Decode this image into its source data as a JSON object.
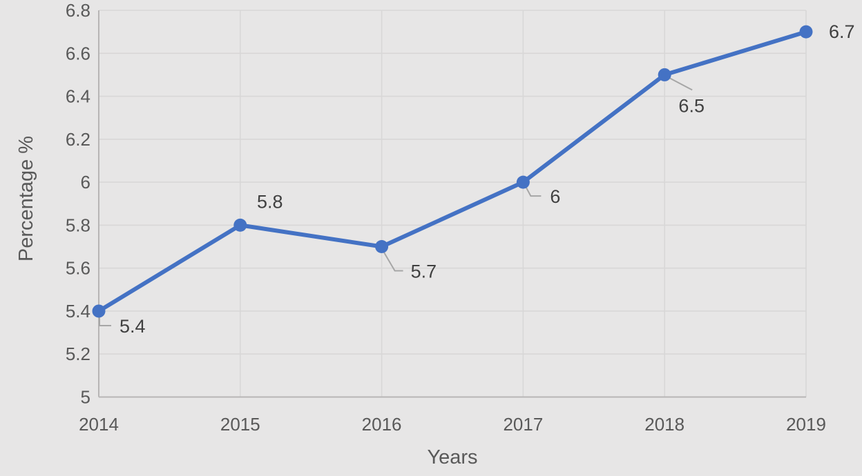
{
  "chart_data": {
    "type": "line",
    "title": "",
    "xlabel": "Years",
    "ylabel": "Percentage %",
    "categories": [
      "2014",
      "2015",
      "2016",
      "2017",
      "2018",
      "2019"
    ],
    "values": [
      5.4,
      5.8,
      5.7,
      6.0,
      6.5,
      6.7
    ],
    "data_labels": [
      "5.4",
      "5.8",
      "5.7",
      "6",
      "6.5",
      "6.7"
    ],
    "ylim": [
      5.0,
      6.8
    ],
    "ytick_step": 0.2,
    "yticks": [
      "5",
      "5.2",
      "5.4",
      "5.6",
      "5.8",
      "6",
      "6.2",
      "6.4",
      "6.6",
      "6.8"
    ],
    "grid": true,
    "legend": "none",
    "colors": {
      "series": "#4472c4",
      "background": "#e7e6e6",
      "gridline": "#d8d7d7",
      "axis_line": "#b7b5b5",
      "leader_line": "#a6a6a6",
      "tick_text": "#595959",
      "title_text": "#595959",
      "data_label_text": "#404040"
    }
  }
}
